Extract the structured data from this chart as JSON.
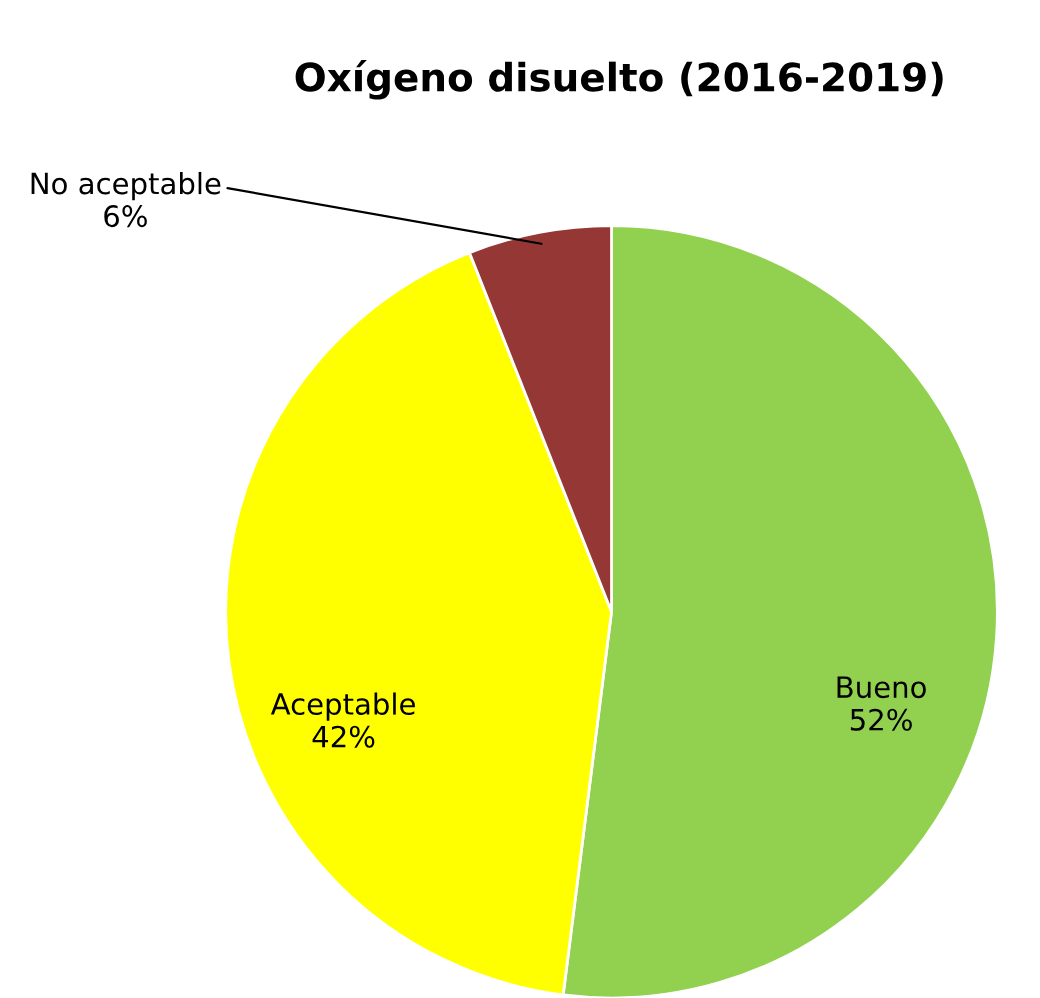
{
  "chart_data": {
    "type": "pie",
    "title": "Oxígeno disuelto (2016-2019)",
    "categories": [
      "Bueno",
      "Aceptable",
      "No aceptable"
    ],
    "values": [
      52,
      42,
      6
    ],
    "value_labels": [
      "52%",
      "42%",
      "6%"
    ],
    "colors": [
      "#92d050",
      "#ffff00",
      "#953735"
    ]
  }
}
